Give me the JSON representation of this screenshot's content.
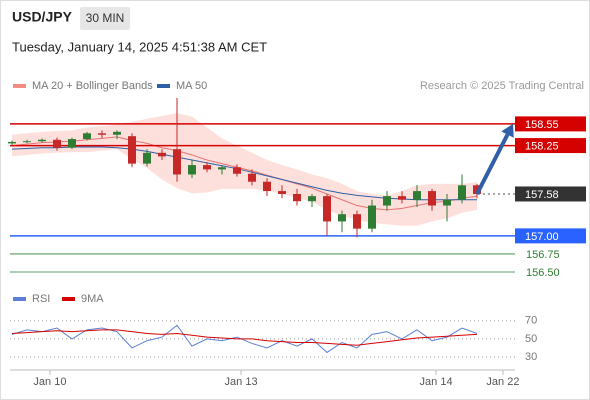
{
  "header": {
    "symbol": "USD/JPY",
    "interval": "30 MIN",
    "timestamp": "Tuesday, January 14, 2025 4:51:38 AM CET"
  },
  "chart_data": [
    {
      "type": "candlestick",
      "legend": [
        {
          "name": "MA 20 + Bollinger Bands",
          "color": "#f28b82"
        },
        {
          "name": "MA 50",
          "color": "#2f5fa7"
        }
      ],
      "credit": "Research © 2025 Trading Central",
      "candles": {
        "open": [
          158.28,
          158.3,
          158.31,
          158.33,
          158.22,
          158.34,
          158.42,
          158.4,
          158.38,
          158.0,
          158.15,
          158.2,
          157.85,
          157.98,
          157.92,
          157.95,
          157.86,
          157.75,
          157.62,
          157.58,
          157.48,
          157.55,
          157.2,
          157.3,
          157.1,
          157.42,
          157.55,
          157.5,
          157.62,
          157.42,
          157.5,
          157.7
        ],
        "high": [
          158.32,
          158.33,
          158.35,
          158.36,
          158.36,
          158.44,
          158.46,
          158.46,
          158.42,
          158.2,
          158.2,
          158.91,
          158.05,
          158.02,
          157.98,
          157.99,
          157.92,
          157.8,
          157.7,
          157.65,
          157.58,
          157.58,
          157.35,
          157.35,
          157.5,
          157.62,
          157.62,
          157.7,
          157.65,
          157.58,
          157.85,
          157.72
        ],
        "low": [
          158.26,
          158.28,
          158.29,
          158.18,
          158.2,
          158.32,
          158.35,
          158.34,
          157.95,
          157.96,
          158.05,
          157.75,
          157.8,
          157.88,
          157.85,
          157.82,
          157.7,
          157.55,
          157.52,
          157.42,
          157.4,
          157.0,
          157.05,
          156.98,
          157.05,
          157.35,
          157.45,
          157.4,
          157.35,
          157.2,
          157.45,
          157.52
        ],
        "close": [
          158.3,
          158.31,
          158.33,
          158.22,
          158.34,
          158.42,
          158.4,
          158.44,
          158.0,
          158.15,
          158.1,
          157.85,
          157.98,
          157.92,
          157.95,
          157.86,
          157.75,
          157.62,
          157.58,
          157.48,
          157.55,
          157.2,
          157.3,
          157.1,
          157.42,
          157.55,
          157.5,
          157.62,
          157.42,
          157.5,
          157.7,
          157.58
        ]
      },
      "up_color": "#2e7d32",
      "down_color": "#c62828",
      "series": [
        {
          "name": "MA 20",
          "color": "#e57373",
          "values": [
            158.25,
            158.27,
            158.29,
            158.3,
            158.31,
            158.33,
            158.35,
            158.37,
            158.32,
            158.28,
            158.22,
            158.18,
            158.12,
            158.05,
            158.0,
            157.95,
            157.9,
            157.84,
            157.78,
            157.72,
            157.66,
            157.58,
            157.5,
            157.42,
            157.38,
            157.36,
            157.38,
            157.42,
            157.46,
            157.48,
            157.52,
            157.55
          ]
        },
        {
          "name": "MA 50",
          "color": "#2f5fa7",
          "values": [
            158.2,
            158.21,
            158.22,
            158.22,
            158.23,
            158.23,
            158.23,
            158.22,
            158.2,
            158.17,
            158.13,
            158.09,
            158.05,
            158.01,
            157.97,
            157.93,
            157.88,
            157.83,
            157.78,
            157.73,
            157.68,
            157.63,
            157.59,
            157.56,
            157.54,
            157.52,
            157.51,
            157.5,
            157.5,
            157.5,
            157.5,
            157.5
          ]
        }
      ],
      "band": {
        "color": "#fde0dc",
        "upper": [
          158.4,
          158.42,
          158.44,
          158.45,
          158.46,
          158.5,
          158.52,
          158.54,
          158.58,
          158.62,
          158.66,
          158.7,
          158.65,
          158.5,
          158.35,
          158.25,
          158.15,
          158.05,
          157.98,
          157.92,
          157.85,
          157.8,
          157.72,
          157.62,
          157.58,
          157.56,
          157.62,
          157.7,
          157.72,
          157.72,
          157.72,
          157.74
        ],
        "lower": [
          158.1,
          158.12,
          158.14,
          158.15,
          158.16,
          158.16,
          158.18,
          158.2,
          158.06,
          157.94,
          157.78,
          157.66,
          157.59,
          157.6,
          157.65,
          157.65,
          157.65,
          157.63,
          157.58,
          157.52,
          157.47,
          157.36,
          157.28,
          157.22,
          157.18,
          157.16,
          157.14,
          157.14,
          157.2,
          157.24,
          157.32,
          157.36
        ]
      },
      "levels": [
        {
          "value": 158.55,
          "label": "158.55",
          "color": "#d50000",
          "kind": "box"
        },
        {
          "value": 158.25,
          "label": "158.25",
          "color": "#d50000",
          "kind": "box"
        },
        {
          "value": 157.58,
          "label": "157.58",
          "color": "#333333",
          "kind": "current"
        },
        {
          "value": 157,
          "label": "157.00",
          "color": "#2962ff",
          "kind": "box"
        },
        {
          "value": 156.75,
          "label": "156.75",
          "color": "#2e7d32",
          "kind": "text"
        },
        {
          "value": 156.5,
          "label": "156.50",
          "color": "#2e7d32",
          "kind": "text"
        }
      ],
      "forecast_color": "#2f5fa7",
      "ylim": [
        156.32,
        158.95
      ],
      "xlim": [
        -0.5,
        33.5
      ],
      "xticks": [
        {
          "value": 2.53,
          "label": "Jan 10"
        },
        {
          "value": 15.27,
          "label": "Jan 13"
        },
        {
          "value": 28.27,
          "label": "Jan 14"
        },
        {
          "value": 32.73,
          "label": "Jan 22"
        }
      ]
    },
    {
      "type": "line",
      "series": [
        {
          "name": "RSI",
          "color": "#5b7fd6",
          "values": [
            55,
            60,
            58,
            62,
            50,
            60,
            62,
            58,
            40,
            48,
            52,
            65,
            42,
            50,
            48,
            52,
            45,
            40,
            48,
            42,
            50,
            35,
            46,
            40,
            55,
            58,
            50,
            60,
            48,
            52,
            62,
            56
          ]
        },
        {
          "name": "9MA",
          "color": "#d50000",
          "values": [
            56,
            57,
            58,
            59,
            58,
            59,
            60,
            60,
            58,
            56,
            55,
            56,
            54,
            52,
            51,
            50,
            50,
            48,
            47,
            46,
            46,
            45,
            44,
            43,
            45,
            47,
            49,
            51,
            52,
            53,
            54,
            55
          ]
        }
      ],
      "ylim": [
        20,
        82
      ],
      "yticks": [
        70,
        50,
        30
      ]
    }
  ]
}
